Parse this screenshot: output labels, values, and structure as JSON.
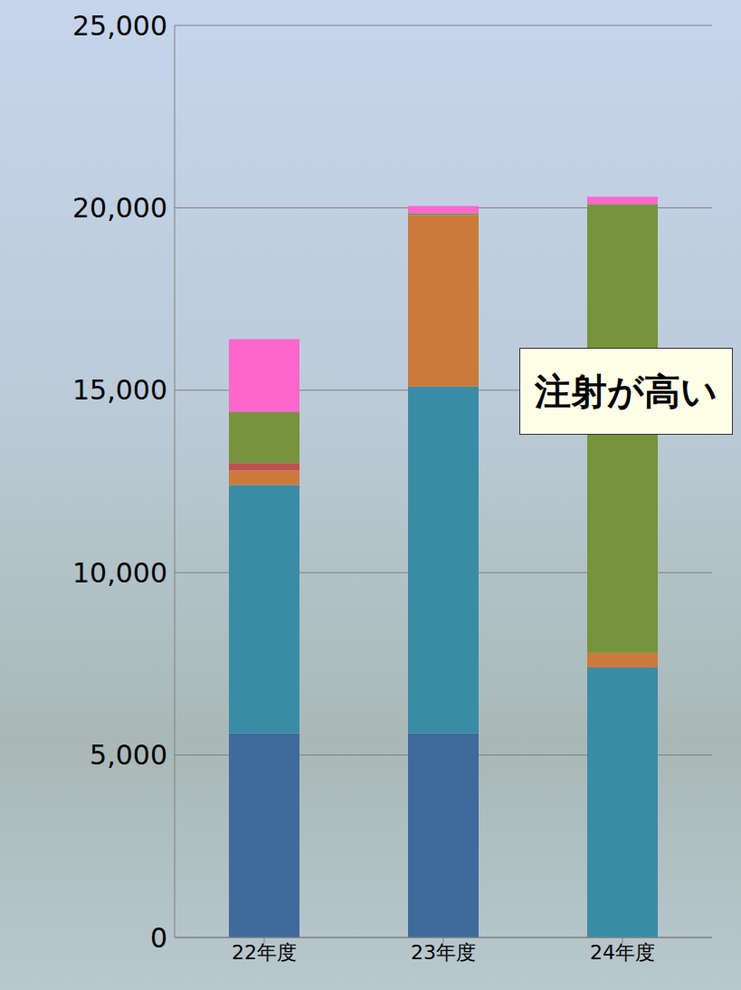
{
  "chart_data": {
    "type": "bar",
    "stacked": true,
    "grid": true,
    "categories": [
      "22年度",
      "23年度",
      "24年度"
    ],
    "series": [
      {
        "color": "#3f6a9c",
        "values": [
          5600,
          5600,
          0
        ]
      },
      {
        "color": "#3a8ca6",
        "values": [
          6800,
          9500,
          7400
        ]
      },
      {
        "color": "#cc7a3a",
        "values": [
          400,
          4700,
          400
        ]
      },
      {
        "color": "#c0504d",
        "values": [
          200,
          0,
          0
        ]
      },
      {
        "color": "#77933c",
        "values": [
          1400,
          50,
          12300
        ]
      },
      {
        "color": "#ff66cc",
        "values": [
          2000,
          200,
          200
        ]
      }
    ],
    "ylim": [
      0,
      25000
    ],
    "yticks": [
      0,
      {
        "value": 5000,
        "label": "5,000"
      },
      {
        "value": 10000,
        "label": "10,000"
      },
      {
        "value": 15000,
        "label": "15,000"
      },
      {
        "value": 20000,
        "label": "20,000"
      },
      {
        "value": 25000,
        "label": "25,000"
      }
    ],
    "annotation": "注射が高い"
  }
}
